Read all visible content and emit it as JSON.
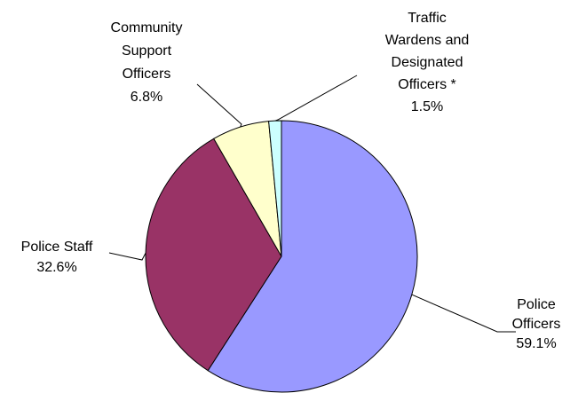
{
  "chart_data": {
    "type": "pie",
    "title": "",
    "slices": [
      {
        "key": "police-officers",
        "lines": [
          "Police",
          "Officers"
        ],
        "label": "Police Officers",
        "value": 59.1,
        "value_label": "59.1%",
        "color": "#9999ff"
      },
      {
        "key": "police-staff",
        "lines": [
          "Police Staff"
        ],
        "label": "Police Staff",
        "value": 32.6,
        "value_label": "32.6%",
        "color": "#993366"
      },
      {
        "key": "community-support-officers",
        "lines": [
          "Community",
          "Support",
          "Officers"
        ],
        "label": "Community Support Officers",
        "value": 6.8,
        "value_label": "6.8%",
        "color": "#ffffcc"
      },
      {
        "key": "traffic-wardens",
        "lines": [
          "Traffic",
          "Wardens and",
          "Designated",
          "Officers *"
        ],
        "label": "Traffic Wardens and Designated Officers *",
        "value": 1.5,
        "value_label": "1.5%",
        "color": "#ccffff"
      }
    ]
  }
}
